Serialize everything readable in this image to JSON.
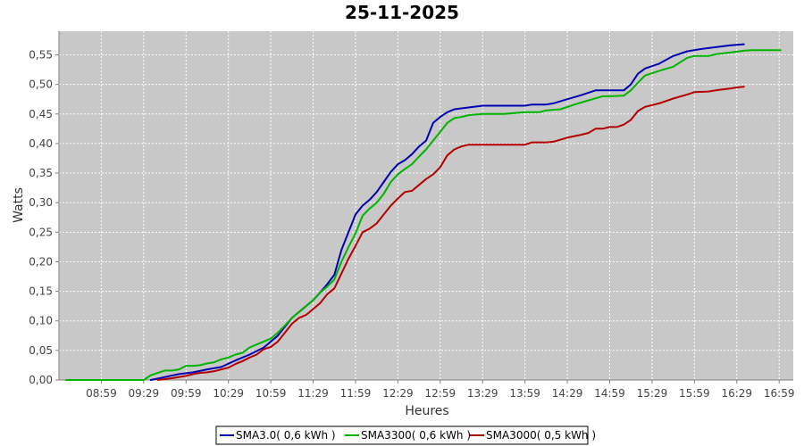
{
  "chart_data": {
    "type": "line",
    "title": "25-11-2025",
    "xlabel": "Heures",
    "ylabel": "Watts",
    "x_unit": "time (HH:MM)",
    "xlim": [
      "08:29",
      "17:09"
    ],
    "ylim": [
      0,
      0.59
    ],
    "x_ticks": [
      "08:59",
      "09:29",
      "09:59",
      "10:29",
      "10:59",
      "11:29",
      "11:59",
      "12:29",
      "12:59",
      "13:29",
      "13:59",
      "14:29",
      "14:59",
      "15:29",
      "15:59",
      "16:29",
      "16:59"
    ],
    "y_ticks": [
      0.0,
      0.05,
      0.1,
      0.15,
      0.2,
      0.25,
      0.3,
      0.35,
      0.4,
      0.45,
      0.5,
      0.55
    ],
    "y_tick_labels": [
      "0,00",
      "0,05",
      "0,10",
      "0,15",
      "0,20",
      "0,25",
      "0,30",
      "0,35",
      "0,40",
      "0,45",
      "0,50",
      "0,55"
    ],
    "grid": true,
    "legend": "bottom",
    "plot_background": "#c8c8c8",
    "series": [
      {
        "name": "SMA3.0( 0,6 kWh )",
        "color": "#0000b4",
        "points": [
          [
            "09:34",
            0.0
          ],
          [
            "09:44",
            0.005
          ],
          [
            "09:54",
            0.01
          ],
          [
            "10:04",
            0.013
          ],
          [
            "10:14",
            0.018
          ],
          [
            "10:24",
            0.022
          ],
          [
            "10:34",
            0.033
          ],
          [
            "10:44",
            0.043
          ],
          [
            "10:54",
            0.055
          ],
          [
            "11:04",
            0.075
          ],
          [
            "11:14",
            0.105
          ],
          [
            "11:24",
            0.125
          ],
          [
            "11:29",
            0.135
          ],
          [
            "11:34",
            0.148
          ],
          [
            "11:39",
            0.162
          ],
          [
            "11:44",
            0.178
          ],
          [
            "11:49",
            0.22
          ],
          [
            "11:54",
            0.25
          ],
          [
            "11:59",
            0.28
          ],
          [
            "12:04",
            0.295
          ],
          [
            "12:09",
            0.305
          ],
          [
            "12:14",
            0.318
          ],
          [
            "12:19",
            0.335
          ],
          [
            "12:24",
            0.352
          ],
          [
            "12:29",
            0.365
          ],
          [
            "12:34",
            0.372
          ],
          [
            "12:39",
            0.382
          ],
          [
            "12:44",
            0.395
          ],
          [
            "12:49",
            0.405
          ],
          [
            "12:54",
            0.435
          ],
          [
            "12:59",
            0.445
          ],
          [
            "13:04",
            0.453
          ],
          [
            "13:09",
            0.458
          ],
          [
            "13:19",
            0.461
          ],
          [
            "13:29",
            0.464
          ],
          [
            "13:44",
            0.464
          ],
          [
            "13:59",
            0.464
          ],
          [
            "14:04",
            0.466
          ],
          [
            "14:14",
            0.466
          ],
          [
            "14:19",
            0.468
          ],
          [
            "14:29",
            0.475
          ],
          [
            "14:39",
            0.482
          ],
          [
            "14:49",
            0.49
          ],
          [
            "14:59",
            0.49
          ],
          [
            "15:09",
            0.49
          ],
          [
            "15:14",
            0.5
          ],
          [
            "15:19",
            0.518
          ],
          [
            "15:24",
            0.527
          ],
          [
            "15:34",
            0.535
          ],
          [
            "15:44",
            0.548
          ],
          [
            "15:54",
            0.556
          ],
          [
            "15:59",
            0.558
          ],
          [
            "16:04",
            0.56
          ],
          [
            "16:14",
            0.563
          ],
          [
            "16:24",
            0.566
          ],
          [
            "16:34",
            0.568
          ]
        ]
      },
      {
        "name": "SMA3300( 0,6 kWh )",
        "color": "#00b400",
        "points": [
          [
            "08:34",
            0.0
          ],
          [
            "08:59",
            0.0
          ],
          [
            "09:24",
            0.0
          ],
          [
            "09:29",
            0.0
          ],
          [
            "09:34",
            0.008
          ],
          [
            "09:39",
            0.012
          ],
          [
            "09:44",
            0.016
          ],
          [
            "09:49",
            0.016
          ],
          [
            "09:54",
            0.018
          ],
          [
            "09:59",
            0.024
          ],
          [
            "10:04",
            0.024
          ],
          [
            "10:09",
            0.025
          ],
          [
            "10:14",
            0.028
          ],
          [
            "10:19",
            0.03
          ],
          [
            "10:24",
            0.035
          ],
          [
            "10:29",
            0.038
          ],
          [
            "10:34",
            0.043
          ],
          [
            "10:39",
            0.046
          ],
          [
            "10:44",
            0.055
          ],
          [
            "10:49",
            0.06
          ],
          [
            "10:54",
            0.065
          ],
          [
            "10:59",
            0.07
          ],
          [
            "11:04",
            0.08
          ],
          [
            "11:09",
            0.092
          ],
          [
            "11:14",
            0.105
          ],
          [
            "11:19",
            0.115
          ],
          [
            "11:24",
            0.125
          ],
          [
            "11:29",
            0.135
          ],
          [
            "11:34",
            0.148
          ],
          [
            "11:39",
            0.158
          ],
          [
            "11:44",
            0.17
          ],
          [
            "11:49",
            0.2
          ],
          [
            "11:54",
            0.225
          ],
          [
            "11:59",
            0.248
          ],
          [
            "12:04",
            0.278
          ],
          [
            "12:09",
            0.29
          ],
          [
            "12:14",
            0.3
          ],
          [
            "12:19",
            0.315
          ],
          [
            "12:24",
            0.335
          ],
          [
            "12:29",
            0.348
          ],
          [
            "12:34",
            0.357
          ],
          [
            "12:39",
            0.365
          ],
          [
            "12:44",
            0.378
          ],
          [
            "12:49",
            0.39
          ],
          [
            "12:54",
            0.405
          ],
          [
            "12:59",
            0.42
          ],
          [
            "13:04",
            0.435
          ],
          [
            "13:09",
            0.443
          ],
          [
            "13:14",
            0.445
          ],
          [
            "13:19",
            0.448
          ],
          [
            "13:29",
            0.45
          ],
          [
            "13:44",
            0.45
          ],
          [
            "13:59",
            0.453
          ],
          [
            "14:09",
            0.453
          ],
          [
            "14:14",
            0.456
          ],
          [
            "14:24",
            0.458
          ],
          [
            "14:34",
            0.466
          ],
          [
            "14:44",
            0.473
          ],
          [
            "14:54",
            0.48
          ],
          [
            "14:59",
            0.48
          ],
          [
            "15:09",
            0.481
          ],
          [
            "15:14",
            0.49
          ],
          [
            "15:19",
            0.503
          ],
          [
            "15:24",
            0.515
          ],
          [
            "15:34",
            0.523
          ],
          [
            "15:44",
            0.53
          ],
          [
            "15:54",
            0.545
          ],
          [
            "15:59",
            0.548
          ],
          [
            "16:09",
            0.548
          ],
          [
            "16:14",
            0.551
          ],
          [
            "16:24",
            0.554
          ],
          [
            "16:34",
            0.557
          ],
          [
            "16:39",
            0.558
          ],
          [
            "16:49",
            0.558
          ],
          [
            "17:00",
            0.558
          ]
        ]
      },
      {
        "name": "SMA3000( 0,5 kWh )",
        "color": "#b40000",
        "points": [
          [
            "09:39",
            0.0
          ],
          [
            "09:49",
            0.003
          ],
          [
            "09:59",
            0.007
          ],
          [
            "10:04",
            0.01
          ],
          [
            "10:09",
            0.012
          ],
          [
            "10:14",
            0.013
          ],
          [
            "10:19",
            0.015
          ],
          [
            "10:24",
            0.018
          ],
          [
            "10:29",
            0.021
          ],
          [
            "10:34",
            0.027
          ],
          [
            "10:39",
            0.032
          ],
          [
            "10:44",
            0.038
          ],
          [
            "10:49",
            0.043
          ],
          [
            "10:54",
            0.052
          ],
          [
            "10:59",
            0.056
          ],
          [
            "11:04",
            0.065
          ],
          [
            "11:09",
            0.08
          ],
          [
            "11:14",
            0.095
          ],
          [
            "11:19",
            0.105
          ],
          [
            "11:24",
            0.11
          ],
          [
            "11:29",
            0.12
          ],
          [
            "11:34",
            0.13
          ],
          [
            "11:39",
            0.145
          ],
          [
            "11:44",
            0.155
          ],
          [
            "11:49",
            0.18
          ],
          [
            "11:54",
            0.205
          ],
          [
            "11:59",
            0.227
          ],
          [
            "12:04",
            0.25
          ],
          [
            "12:09",
            0.256
          ],
          [
            "12:14",
            0.265
          ],
          [
            "12:19",
            0.28
          ],
          [
            "12:24",
            0.295
          ],
          [
            "12:29",
            0.307
          ],
          [
            "12:34",
            0.318
          ],
          [
            "12:39",
            0.32
          ],
          [
            "12:44",
            0.33
          ],
          [
            "12:49",
            0.34
          ],
          [
            "12:54",
            0.348
          ],
          [
            "12:59",
            0.36
          ],
          [
            "13:04",
            0.38
          ],
          [
            "13:09",
            0.39
          ],
          [
            "13:14",
            0.395
          ],
          [
            "13:19",
            0.398
          ],
          [
            "13:29",
            0.398
          ],
          [
            "13:44",
            0.398
          ],
          [
            "13:59",
            0.398
          ],
          [
            "14:04",
            0.402
          ],
          [
            "14:14",
            0.402
          ],
          [
            "14:19",
            0.403
          ],
          [
            "14:29",
            0.41
          ],
          [
            "14:39",
            0.415
          ],
          [
            "14:44",
            0.418
          ],
          [
            "14:49",
            0.425
          ],
          [
            "14:54",
            0.425
          ],
          [
            "14:59",
            0.428
          ],
          [
            "15:04",
            0.428
          ],
          [
            "15:09",
            0.432
          ],
          [
            "15:14",
            0.44
          ],
          [
            "15:19",
            0.455
          ],
          [
            "15:24",
            0.462
          ],
          [
            "15:34",
            0.468
          ],
          [
            "15:44",
            0.476
          ],
          [
            "15:54",
            0.483
          ],
          [
            "15:59",
            0.487
          ],
          [
            "16:09",
            0.488
          ],
          [
            "16:14",
            0.49
          ],
          [
            "16:24",
            0.493
          ],
          [
            "16:29",
            0.495
          ],
          [
            "16:34",
            0.496
          ]
        ]
      }
    ]
  }
}
